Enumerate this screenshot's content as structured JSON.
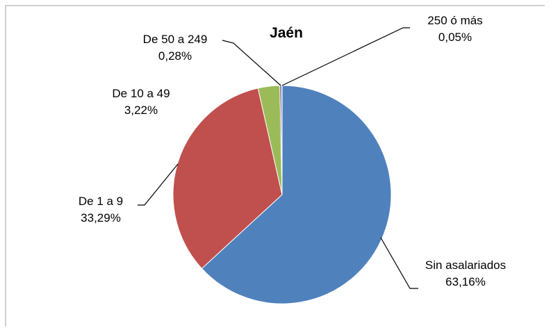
{
  "chart_data": {
    "type": "pie",
    "title": "Jaén",
    "categories": [
      "Sin asalariados",
      "De 1 a 9",
      "De 10 a 49",
      "De 50 a 249",
      "250 ó más"
    ],
    "values": [
      63.16,
      33.29,
      3.22,
      0.28,
      0.05
    ],
    "value_labels": [
      "63,16%",
      "33,29%",
      "3,22%",
      "0,28%",
      "0,05%"
    ],
    "colors": [
      "#4f81bd",
      "#c0504d",
      "#9bbb59",
      "#8064a2",
      "#4bacc6"
    ]
  }
}
